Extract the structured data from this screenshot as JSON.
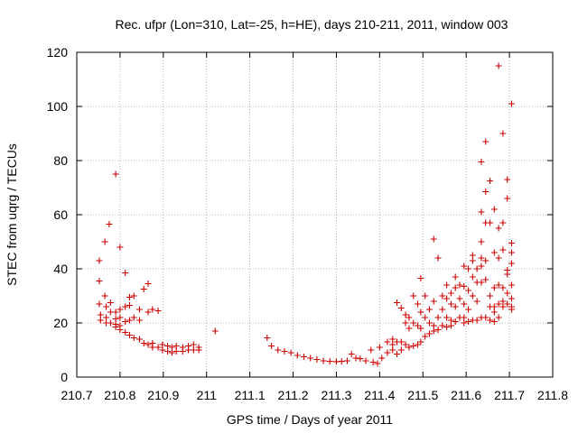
{
  "chart_data": {
    "type": "scatter",
    "title": "Rec. ufpr (Lon=310, Lat=-25, h=HE), days 210-211, 2011, window 003",
    "xlabel": "GPS time / Days of year 2011",
    "ylabel": "STEC from uqrg / TECUs",
    "xlim": [
      210.7,
      211.8
    ],
    "ylim": [
      0,
      120
    ],
    "grid": true,
    "marker": "+",
    "marker_color": "#cc0000",
    "x_ticks": [
      {
        "value": 210.7,
        "label": "210.7"
      },
      {
        "value": 210.8,
        "label": "210.8"
      },
      {
        "value": 210.9,
        "label": "210.9"
      },
      {
        "value": 211.0,
        "label": "211"
      },
      {
        "value": 211.1,
        "label": "211.1"
      },
      {
        "value": 211.2,
        "label": "211.2"
      },
      {
        "value": 211.3,
        "label": "211.3"
      },
      {
        "value": 211.4,
        "label": "211.4"
      },
      {
        "value": 211.5,
        "label": "211.5"
      },
      {
        "value": 211.6,
        "label": "211.6"
      },
      {
        "value": 211.7,
        "label": "211.7"
      },
      {
        "value": 211.8,
        "label": "211.8"
      }
    ],
    "y_ticks": [
      {
        "value": 0,
        "label": "0"
      },
      {
        "value": 20,
        "label": "20"
      },
      {
        "value": 40,
        "label": "40"
      },
      {
        "value": 60,
        "label": "60"
      },
      {
        "value": 80,
        "label": "80"
      },
      {
        "value": 100,
        "label": "100"
      },
      {
        "value": 120,
        "label": "120"
      }
    ],
    "points": [
      [
        210.752,
        43
      ],
      [
        210.752,
        35.5
      ],
      [
        210.752,
        27
      ],
      [
        210.755,
        23
      ],
      [
        210.755,
        21
      ],
      [
        210.765,
        50
      ],
      [
        210.765,
        30
      ],
      [
        210.768,
        26
      ],
      [
        210.768,
        22
      ],
      [
        210.768,
        20
      ],
      [
        210.775,
        56.5
      ],
      [
        210.778,
        27.5
      ],
      [
        210.778,
        24
      ],
      [
        210.778,
        20
      ],
      [
        210.79,
        75
      ],
      [
        210.79,
        24
      ],
      [
        210.79,
        21.5
      ],
      [
        210.79,
        19.5
      ],
      [
        210.79,
        18.5
      ],
      [
        210.8,
        48
      ],
      [
        210.8,
        25
      ],
      [
        210.8,
        22
      ],
      [
        210.8,
        19
      ],
      [
        210.8,
        17.5
      ],
      [
        210.812,
        38.5
      ],
      [
        210.812,
        26
      ],
      [
        210.812,
        20.5
      ],
      [
        210.812,
        16.5
      ],
      [
        210.822,
        29.5
      ],
      [
        210.822,
        26.5
      ],
      [
        210.822,
        21
      ],
      [
        210.822,
        15.5
      ],
      [
        210.832,
        30
      ],
      [
        210.832,
        22
      ],
      [
        210.832,
        14.5
      ],
      [
        210.845,
        25
      ],
      [
        210.845,
        21
      ],
      [
        210.845,
        14
      ],
      [
        210.855,
        32.5
      ],
      [
        210.855,
        12.5
      ],
      [
        210.865,
        34.5
      ],
      [
        210.865,
        24
      ],
      [
        210.865,
        12
      ],
      [
        210.875,
        25
      ],
      [
        210.875,
        12.5
      ],
      [
        210.875,
        11
      ],
      [
        210.888,
        24.5
      ],
      [
        210.888,
        11
      ],
      [
        210.898,
        12
      ],
      [
        210.898,
        10
      ],
      [
        210.91,
        11.5
      ],
      [
        210.91,
        9.5
      ],
      [
        210.92,
        11
      ],
      [
        210.92,
        9
      ],
      [
        210.93,
        11.5
      ],
      [
        210.93,
        9.5
      ],
      [
        210.945,
        11
      ],
      [
        210.945,
        9.5
      ],
      [
        210.958,
        11.5
      ],
      [
        210.958,
        10
      ],
      [
        210.97,
        12
      ],
      [
        210.97,
        10
      ],
      [
        210.982,
        11
      ],
      [
        210.982,
        10
      ],
      [
        211.02,
        17
      ],
      [
        211.14,
        14.5
      ],
      [
        211.15,
        11.5
      ],
      [
        211.165,
        10
      ],
      [
        211.18,
        9.5
      ],
      [
        211.195,
        9
      ],
      [
        211.21,
        8
      ],
      [
        211.225,
        7.5
      ],
      [
        211.24,
        7
      ],
      [
        211.255,
        6.5
      ],
      [
        211.27,
        6
      ],
      [
        211.285,
        5.8
      ],
      [
        211.3,
        5.7
      ],
      [
        211.312,
        5.8
      ],
      [
        211.325,
        6
      ],
      [
        211.335,
        8.5
      ],
      [
        211.345,
        7
      ],
      [
        211.355,
        6.8
      ],
      [
        211.368,
        6
      ],
      [
        211.38,
        10
      ],
      [
        211.385,
        5.5
      ],
      [
        211.395,
        5
      ],
      [
        211.4,
        11
      ],
      [
        211.405,
        7
      ],
      [
        211.418,
        13
      ],
      [
        211.418,
        9
      ],
      [
        211.43,
        14
      ],
      [
        211.43,
        12
      ],
      [
        211.43,
        10
      ],
      [
        211.44,
        27.5
      ],
      [
        211.44,
        13
      ],
      [
        211.44,
        8.5
      ],
      [
        211.45,
        25.5
      ],
      [
        211.45,
        13
      ],
      [
        211.45,
        10
      ],
      [
        211.46,
        23
      ],
      [
        211.46,
        20
      ],
      [
        211.46,
        12
      ],
      [
        211.468,
        22
      ],
      [
        211.468,
        18
      ],
      [
        211.468,
        11
      ],
      [
        211.478,
        30
      ],
      [
        211.478,
        20
      ],
      [
        211.478,
        11.5
      ],
      [
        211.488,
        27
      ],
      [
        211.488,
        19
      ],
      [
        211.488,
        12
      ],
      [
        211.495,
        36.5
      ],
      [
        211.495,
        24
      ],
      [
        211.495,
        18
      ],
      [
        211.495,
        13
      ],
      [
        211.505,
        30
      ],
      [
        211.505,
        22
      ],
      [
        211.505,
        15
      ],
      [
        211.515,
        25
      ],
      [
        211.515,
        20
      ],
      [
        211.515,
        16
      ],
      [
        211.525,
        51
      ],
      [
        211.525,
        28
      ],
      [
        211.525,
        19
      ],
      [
        211.525,
        17
      ],
      [
        211.535,
        44
      ],
      [
        211.535,
        22
      ],
      [
        211.535,
        17.5
      ],
      [
        211.545,
        30
      ],
      [
        211.545,
        25
      ],
      [
        211.545,
        19
      ],
      [
        211.555,
        34
      ],
      [
        211.555,
        29
      ],
      [
        211.555,
        22
      ],
      [
        211.555,
        18.5
      ],
      [
        211.565,
        31
      ],
      [
        211.565,
        27
      ],
      [
        211.565,
        21
      ],
      [
        211.565,
        19
      ],
      [
        211.575,
        37
      ],
      [
        211.575,
        33
      ],
      [
        211.575,
        26
      ],
      [
        211.575,
        20.5
      ],
      [
        211.585,
        34
      ],
      [
        211.585,
        29
      ],
      [
        211.585,
        22
      ],
      [
        211.595,
        41
      ],
      [
        211.595,
        33.5
      ],
      [
        211.595,
        27
      ],
      [
        211.595,
        22
      ],
      [
        211.595,
        20
      ],
      [
        211.605,
        40
      ],
      [
        211.605,
        32
      ],
      [
        211.605,
        25
      ],
      [
        211.605,
        20.5
      ],
      [
        211.615,
        45
      ],
      [
        211.615,
        43
      ],
      [
        211.615,
        37
      ],
      [
        211.615,
        30
      ],
      [
        211.615,
        21
      ],
      [
        211.625,
        40
      ],
      [
        211.625,
        35
      ],
      [
        211.625,
        28
      ],
      [
        211.625,
        21
      ],
      [
        211.635,
        79.5
      ],
      [
        211.635,
        61
      ],
      [
        211.635,
        50
      ],
      [
        211.635,
        44
      ],
      [
        211.635,
        41
      ],
      [
        211.635,
        35
      ],
      [
        211.635,
        22
      ],
      [
        211.645,
        87
      ],
      [
        211.645,
        68.5
      ],
      [
        211.645,
        57
      ],
      [
        211.645,
        43
      ],
      [
        211.645,
        36
      ],
      [
        211.645,
        22
      ],
      [
        211.655,
        72.5
      ],
      [
        211.655,
        57
      ],
      [
        211.655,
        30
      ],
      [
        211.655,
        26
      ],
      [
        211.655,
        21
      ],
      [
        211.665,
        62
      ],
      [
        211.665,
        46
      ],
      [
        211.665,
        33
      ],
      [
        211.665,
        26
      ],
      [
        211.665,
        24
      ],
      [
        211.665,
        20.5
      ],
      [
        211.675,
        115
      ],
      [
        211.675,
        55
      ],
      [
        211.675,
        44
      ],
      [
        211.675,
        34
      ],
      [
        211.675,
        27
      ],
      [
        211.675,
        22
      ],
      [
        211.685,
        90
      ],
      [
        211.685,
        57
      ],
      [
        211.685,
        47
      ],
      [
        211.685,
        33
      ],
      [
        211.685,
        28
      ],
      [
        211.685,
        26
      ],
      [
        211.695,
        73
      ],
      [
        211.695,
        66
      ],
      [
        211.695,
        39.5
      ],
      [
        211.695,
        38
      ],
      [
        211.695,
        31
      ],
      [
        211.695,
        27
      ],
      [
        211.705,
        101
      ],
      [
        211.705,
        49.5
      ],
      [
        211.705,
        46
      ],
      [
        211.705,
        42
      ],
      [
        211.705,
        34
      ],
      [
        211.705,
        29
      ],
      [
        211.705,
        26
      ],
      [
        211.705,
        25
      ]
    ]
  }
}
